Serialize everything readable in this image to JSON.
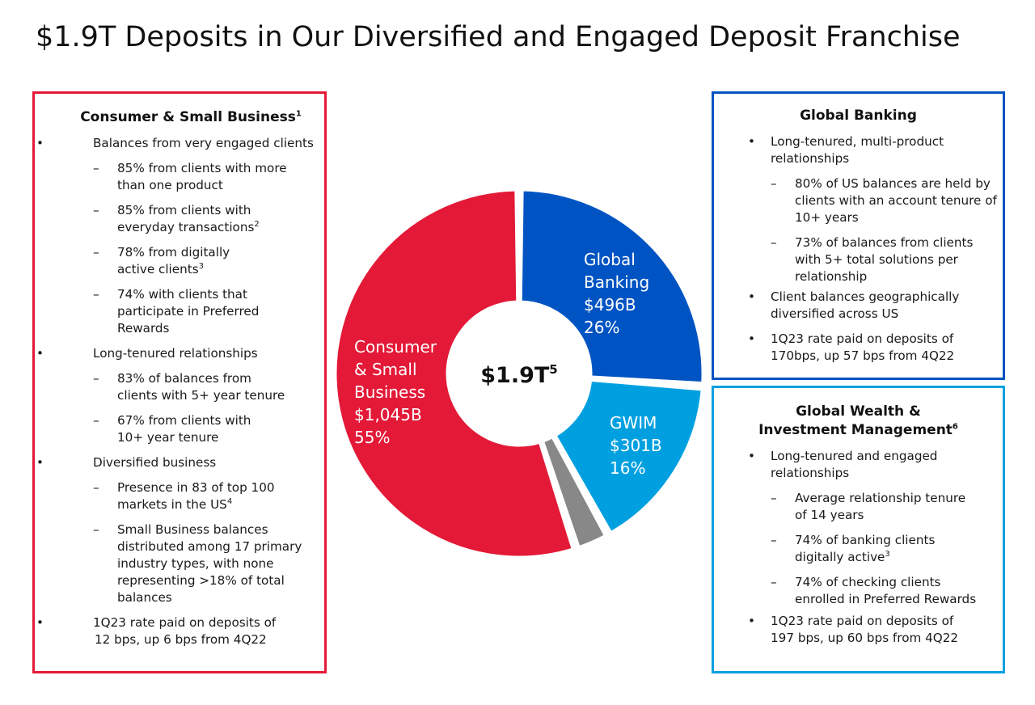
{
  "title": "$1.9T Deposits in Our Diversified and Engaged Deposit Franchise",
  "colors": {
    "consumer": "#e31937",
    "global_banking": "#0053c2",
    "gwim": "#00a0e0",
    "other": "#888888"
  },
  "consumer": {
    "heading": "Consumer & Small Business",
    "heading_sup": "1",
    "b1": "Balances from very engaged clients",
    "b1s1": "85% from clients with more than one product",
    "b1s2": "85% from clients with everyday transactions",
    "b1s2_sup": "2",
    "b1s3": "78% from digitally active clients",
    "b1s3_sup": "3",
    "b1s4": "74% with clients that participate in Preferred Rewards",
    "b2": "Long-tenured relationships",
    "b2s1": "83% of balances from clients with 5+ year tenure",
    "b2s2": "67% from clients with 10+ year tenure",
    "b3": "Diversified business",
    "b3s1": "Presence in 83 of top 100 markets in the US",
    "b3s1_sup": "4",
    "b3s2": "Small Business balances distributed among 17 primary industry types, with none representing >18% of total balances",
    "b4": "1Q23 rate paid on deposits of 12 bps, up 6 bps from 4Q22"
  },
  "global_banking": {
    "heading": "Global Banking",
    "b1": "Long-tenured, multi-product relationships",
    "b1s1": "80% of US balances are held by clients with an account tenure of 10+ years",
    "b1s2": "73% of balances from clients with 5+ total solutions per relationship",
    "b2": "Client balances geographically diversified across US",
    "b3": "1Q23 rate paid on deposits of 170bps, up 57 bps from 4Q22"
  },
  "gwim": {
    "heading_line1": "Global Wealth &",
    "heading_line2": "Investment Management",
    "heading_sup": "6",
    "b1": "Long-tenured and engaged relationships",
    "b1s1": "Average relationship tenure of 14 years",
    "b1s2": "74% of banking clients digitally active",
    "b1s2_sup": "3",
    "b1s3": "74% of checking clients enrolled in Preferred Rewards",
    "b2": "1Q23 rate paid on deposits of 197 bps, up 60 bps from 4Q22"
  },
  "chart_data": {
    "type": "donut",
    "center_label": "$1.9T",
    "center_sup": "5",
    "segments": [
      {
        "name": "Global Banking",
        "label_lines": [
          "Global",
          "Banking"
        ],
        "value_label": "$496B",
        "percent_label": "26%",
        "value": 496,
        "color": "#0053c2"
      },
      {
        "name": "GWIM",
        "label_lines": [
          "GWIM"
        ],
        "value_label": "$301B",
        "percent_label": "16%",
        "value": 301,
        "color": "#00a0e0"
      },
      {
        "name": "",
        "label_lines": [],
        "value_label": "",
        "percent_label": "",
        "value": 58,
        "color": "#888888"
      },
      {
        "name": "Consumer & Small Business",
        "label_lines": [
          "Consumer",
          "& Small",
          "Business"
        ],
        "value_label": "$1,045B",
        "percent_label": "55%",
        "value": 1045,
        "color": "#e31937"
      }
    ]
  }
}
